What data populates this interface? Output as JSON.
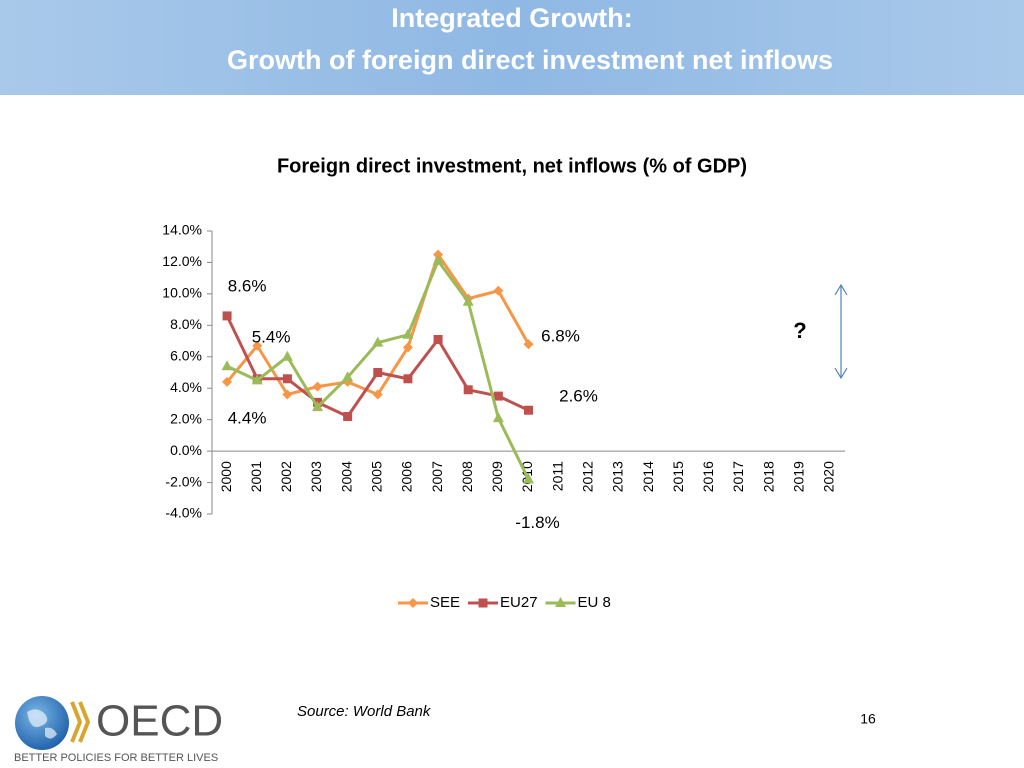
{
  "header": {
    "title": "Integrated Growth:",
    "subtitle": "Growth of foreign direct investment net inflows"
  },
  "chart_data": {
    "type": "line",
    "title": "Foreign direct investment, net inflows (% of GDP)",
    "categories": [
      "2000",
      "2001",
      "2002",
      "2003",
      "2004",
      "2005",
      "2006",
      "2007",
      "2008",
      "2009",
      "2010",
      "2011",
      "2012",
      "2013",
      "2014",
      "2015",
      "2016",
      "2017",
      "2018",
      "2019",
      "2020"
    ],
    "series": [
      {
        "name": "SEE",
        "color": "#f79646",
        "marker": "diamond",
        "values": [
          4.4,
          6.7,
          3.6,
          4.1,
          4.4,
          3.6,
          6.6,
          12.5,
          9.7,
          10.2,
          6.8,
          null,
          null,
          null,
          null,
          null,
          null,
          null,
          null,
          null,
          null
        ],
        "value_labels": [
          "4.4%",
          null,
          null,
          null,
          null,
          null,
          null,
          null,
          null,
          null,
          "6.8%",
          null,
          null,
          null,
          null,
          null,
          null,
          null,
          null,
          null,
          null
        ]
      },
      {
        "name": "EU27",
        "color": "#c0504d",
        "marker": "square",
        "values": [
          8.6,
          4.6,
          4.6,
          3.1,
          2.2,
          5.0,
          4.6,
          7.1,
          3.9,
          3.5,
          2.6,
          null,
          null,
          null,
          null,
          null,
          null,
          null,
          null,
          null,
          null
        ],
        "value_labels": [
          "8.6%",
          null,
          null,
          null,
          null,
          null,
          null,
          null,
          null,
          null,
          "2.6%",
          null,
          null,
          null,
          null,
          null,
          null,
          null,
          null,
          null,
          null
        ]
      },
      {
        "name": "EU 8",
        "color": "#9bbb59",
        "marker": "triangle",
        "values": [
          5.4,
          4.5,
          6.0,
          2.8,
          4.7,
          6.9,
          7.4,
          12.1,
          9.5,
          2.1,
          -1.8,
          null,
          null,
          null,
          null,
          null,
          null,
          null,
          null,
          null,
          null
        ],
        "value_labels": [
          "5.4%",
          null,
          null,
          null,
          null,
          null,
          null,
          null,
          null,
          null,
          "-1.8%",
          null,
          null,
          null,
          null,
          null,
          null,
          null,
          null,
          null,
          null
        ]
      }
    ],
    "ylim": [
      -4,
      14
    ],
    "yticks": [
      {
        "value": -4,
        "label": "-4.0%"
      },
      {
        "value": -2,
        "label": "-2.0%"
      },
      {
        "value": 0,
        "label": "0.0%"
      },
      {
        "value": 2,
        "label": "2.0%"
      },
      {
        "value": 4,
        "label": "4.0%"
      },
      {
        "value": 6,
        "label": "6.0%"
      },
      {
        "value": 8,
        "label": "8.0%"
      },
      {
        "value": 10,
        "label": "10.0%"
      },
      {
        "value": 12,
        "label": "12.0%"
      },
      {
        "value": 14,
        "label": "14.0%"
      }
    ],
    "legend": "bottom",
    "annotation": "?"
  },
  "footer": {
    "source": "Source: World Bank",
    "page": "16",
    "logo": "OECD",
    "tagline": "BETTER POLICIES FOR BETTER LIVES"
  }
}
